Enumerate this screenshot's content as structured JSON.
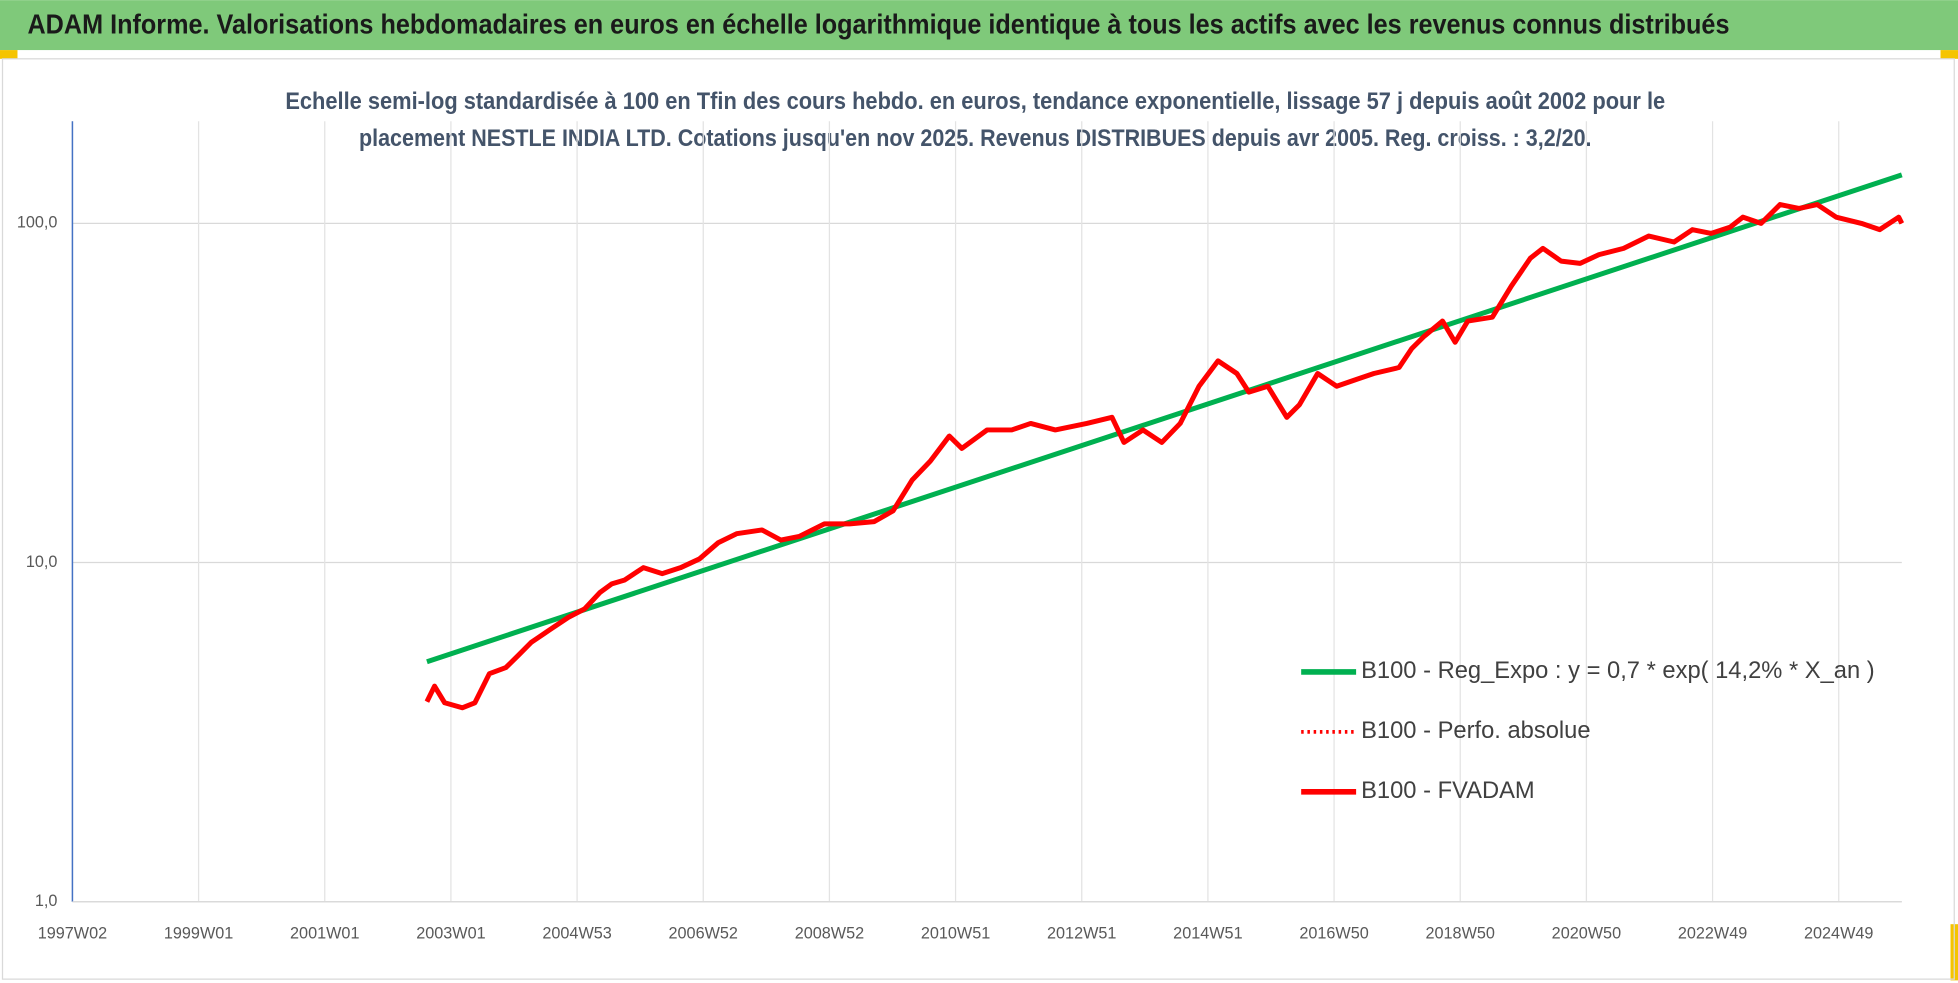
{
  "chart_data": {
    "type": "line",
    "title": "ADAM Informe. Valorisations hebdomadaires en euros en échelle logarithmique identique à tous les actifs avec les revenus connus distribués",
    "subtitle": [
      "Echelle semi-log standardisée à 100 en Tfin des cours hebdo. en euros, tendance exponentielle, lissage 57 j depuis août 2002 pour le",
      "placement NESTLE INDIA LTD. Cotations jusqu'en nov 2025. Revenus DISTRIBUES depuis avr 2005. Reg. croiss. : 3,2/20."
    ],
    "log_y": true,
    "grid": true,
    "xlim": [
      1997,
      2026
    ],
    "ylim": [
      1,
      200
    ],
    "yticks": [
      {
        "value": 1,
        "label": "1,0"
      },
      {
        "value": 10,
        "label": "10,0"
      },
      {
        "value": 100,
        "label": "100,0"
      }
    ],
    "xticks": [
      {
        "value": 1997,
        "label": "1997W02"
      },
      {
        "value": 1999,
        "label": "1999W01"
      },
      {
        "value": 2001,
        "label": "2001W01"
      },
      {
        "value": 2003,
        "label": "2003W01"
      },
      {
        "value": 2005,
        "label": "2004W53"
      },
      {
        "value": 2007,
        "label": "2006W52"
      },
      {
        "value": 2009,
        "label": "2008W52"
      },
      {
        "value": 2011,
        "label": "2010W51"
      },
      {
        "value": 2013,
        "label": "2012W51"
      },
      {
        "value": 2015,
        "label": "2014W51"
      },
      {
        "value": 2017,
        "label": "2016W50"
      },
      {
        "value": 2019,
        "label": "2018W50"
      },
      {
        "value": 2021,
        "label": "2020W50"
      },
      {
        "value": 2023,
        "label": "2022W49"
      },
      {
        "value": 2025,
        "label": "2024W49"
      }
    ],
    "legend_position": "lower right",
    "series": [
      {
        "name": "B100 - Reg_Expo : y = 0,7 * exp( 14,2% *  X_an )",
        "color": "#00b050",
        "style": "solid",
        "x": [
          2002.62,
          2026.0
        ],
        "values": [
          5.1,
          139
        ]
      },
      {
        "name": "B100 - Perfo. absolue",
        "color": "#ff0000",
        "style": "dotted",
        "x": [
          2002.62,
          2002.74,
          2002.9,
          2003.18,
          2003.38,
          2003.61,
          2003.87,
          2004.07,
          2004.27,
          2004.56,
          2004.86,
          2005.12,
          2005.36,
          2005.55,
          2005.75,
          2006.05,
          2006.35,
          2006.64,
          2006.94,
          2007.24,
          2007.53,
          2007.93,
          2008.23,
          2008.52,
          2008.92,
          2009.32,
          2009.71,
          2010.01,
          2010.31,
          2010.6,
          2010.9,
          2011.1,
          2011.5,
          2011.89,
          2012.19,
          2012.58,
          2013.08,
          2013.48,
          2013.67,
          2013.97,
          2014.27,
          2014.56,
          2014.86,
          2015.16,
          2015.46,
          2015.65,
          2015.95,
          2016.25,
          2016.45,
          2016.74,
          2017.04,
          2017.34,
          2017.63,
          2018.03,
          2018.23,
          2018.43,
          2018.72,
          2018.92,
          2019.12,
          2019.51,
          2019.81,
          2020.11,
          2020.31,
          2020.6,
          2020.9,
          2021.2,
          2021.59,
          2021.99,
          2022.39,
          2022.68,
          2022.98,
          2023.28,
          2023.48,
          2023.77,
          2024.07,
          2024.37,
          2024.66,
          2024.96,
          2025.36,
          2025.65,
          2025.95,
          2026.0
        ],
        "values": [
          3.89,
          4.32,
          3.86,
          3.73,
          3.86,
          4.7,
          4.9,
          5.33,
          5.81,
          6.32,
          6.89,
          7.3,
          8.15,
          8.65,
          8.87,
          9.66,
          9.27,
          9.66,
          10.25,
          11.45,
          12.16,
          12.47,
          11.65,
          11.94,
          13.0,
          13.0,
          13.2,
          14.2,
          17.5,
          19.9,
          23.6,
          21.7,
          24.6,
          24.6,
          25.7,
          24.6,
          25.7,
          26.8,
          22.6,
          24.6,
          22.6,
          25.7,
          33.1,
          39.3,
          36.1,
          31.8,
          33.1,
          26.8,
          29.2,
          36.1,
          33.1,
          34.6,
          36.1,
          37.6,
          42.7,
          46.5,
          51.5,
          44.6,
          51.5,
          52.9,
          65.3,
          78.9,
          84.4,
          77.4,
          76.2,
          80.9,
          84.4,
          91.8,
          88.1,
          95.8,
          93.4,
          97.5,
          104.3,
          100,
          113.6,
          110.7,
          113.6,
          104.3,
          100,
          95.8,
          104.3,
          100
        ]
      },
      {
        "name": "B100 - FVADAM",
        "color": "#ff0000",
        "style": "solid",
        "x": [
          2002.62,
          2002.74,
          2002.9,
          2003.18,
          2003.38,
          2003.61,
          2003.87,
          2004.07,
          2004.27,
          2004.56,
          2004.86,
          2005.12,
          2005.36,
          2005.55,
          2005.75,
          2006.05,
          2006.35,
          2006.64,
          2006.94,
          2007.24,
          2007.53,
          2007.93,
          2008.23,
          2008.52,
          2008.92,
          2009.32,
          2009.71,
          2010.01,
          2010.31,
          2010.6,
          2010.9,
          2011.1,
          2011.5,
          2011.89,
          2012.19,
          2012.58,
          2013.08,
          2013.48,
          2013.67,
          2013.97,
          2014.27,
          2014.56,
          2014.86,
          2015.16,
          2015.46,
          2015.65,
          2015.95,
          2016.25,
          2016.45,
          2016.74,
          2017.04,
          2017.34,
          2017.63,
          2018.03,
          2018.23,
          2018.43,
          2018.72,
          2018.92,
          2019.12,
          2019.51,
          2019.81,
          2020.11,
          2020.31,
          2020.6,
          2020.9,
          2021.2,
          2021.59,
          2021.99,
          2022.39,
          2022.68,
          2022.98,
          2023.28,
          2023.48,
          2023.77,
          2024.07,
          2024.37,
          2024.66,
          2024.96,
          2025.36,
          2025.65,
          2025.95,
          2026.0
        ],
        "values": [
          3.89,
          4.32,
          3.86,
          3.73,
          3.86,
          4.7,
          4.9,
          5.33,
          5.81,
          6.32,
          6.89,
          7.3,
          8.15,
          8.65,
          8.87,
          9.66,
          9.27,
          9.66,
          10.25,
          11.45,
          12.16,
          12.47,
          11.65,
          11.94,
          13.0,
          13.0,
          13.2,
          14.2,
          17.5,
          19.9,
          23.6,
          21.7,
          24.6,
          24.6,
          25.7,
          24.6,
          25.7,
          26.8,
          22.6,
          24.6,
          22.6,
          25.7,
          33.1,
          39.3,
          36.1,
          31.8,
          33.1,
          26.8,
          29.2,
          36.1,
          33.1,
          34.6,
          36.1,
          37.6,
          42.7,
          46.5,
          51.5,
          44.6,
          51.5,
          52.9,
          65.3,
          78.9,
          84.4,
          77.4,
          76.2,
          80.9,
          84.4,
          91.8,
          88.1,
          95.8,
          93.4,
          97.5,
          104.3,
          100,
          113.6,
          110.7,
          113.6,
          104.3,
          100,
          95.8,
          104.3,
          100
        ]
      }
    ]
  }
}
